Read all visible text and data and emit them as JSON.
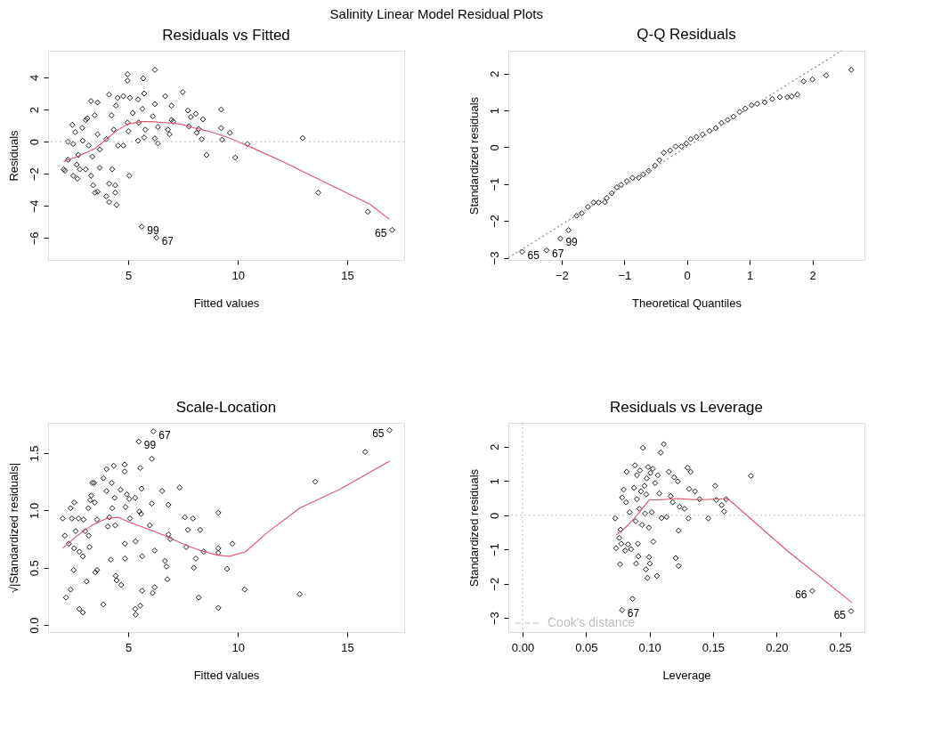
{
  "chart_data": [
    {
      "type": "scatter",
      "title": "Residuals vs Fitted",
      "xlabel": "Fitted values",
      "ylabel": "Residuals",
      "xlim": [
        1.33,
        17.6
      ],
      "ylim": [
        -7.36,
        5.66
      ],
      "xticks": [
        5,
        10,
        15
      ],
      "yticks": [
        -6,
        -4,
        -2,
        0,
        2,
        4
      ],
      "grid": false,
      "series": [
        {
          "marker": "diamond",
          "color": "#000000",
          "x": [
            2.04,
            2.1,
            2.24,
            2.24,
            2.44,
            2.48,
            2.48,
            2.57,
            2.64,
            2.67,
            2.71,
            2.78,
            2.89,
            2.91,
            3.05,
            3.12,
            3.05,
            3.19,
            3.29,
            3.29,
            3.35,
            3.39,
            3.46,
            3.48,
            3.59,
            3.59,
            3.59,
            3.69,
            3.69,
            3.99,
            3.99,
            4.12,
            4.12,
            4.12,
            4.23,
            4.26,
            4.33,
            4.4,
            4.4,
            4.46,
            4.43,
            4.51,
            4.53,
            4.77,
            4.77,
            4.96,
            4.96,
            4.96,
            5.0,
            5.04,
            5.07,
            5.2,
            5.44,
            5.44,
            5.47,
            5.61,
            5.64,
            5.68,
            5.72,
            5.72,
            5.77,
            6.12,
            6.21,
            6.21,
            6.21,
            6.28,
            6.35,
            6.35,
            6.68,
            6.81,
            6.88,
            6.97,
            6.97,
            7.05,
            7.48,
            7.72,
            7.77,
            7.85,
            8.08,
            8.12,
            8.21,
            8.35,
            8.41,
            8.57,
            9.24,
            9.24,
            9.28,
            9.64,
            9.88,
            10.44,
            12.96,
            13.67,
            15.94,
            17.05
          ],
          "values": [
            -1.72,
            -1.8,
            0,
            -1.13,
            1.05,
            -0.14,
            -2.12,
            0.6,
            -1.43,
            -2.3,
            -0.83,
            -1.72,
            0.85,
            0.06,
            1.35,
            1.45,
            -1.72,
            -0.24,
            -2.12,
            2.53,
            -0.93,
            -2.71,
            1.64,
            -3.17,
            2.44,
            0.46,
            -3.11,
            -0.48,
            -1.62,
            0.16,
            -3.4,
            2.93,
            -2.61,
            -3.76,
            1.64,
            -1.72,
            0.75,
            -2.71,
            -3.17,
            -3.94,
            2.24,
            2.73,
            -0.24,
            -0.24,
            2.83,
            4.2,
            3.8,
            1.19,
            0.65,
            -2.12,
            2.73,
            1.78,
            2.63,
            0.06,
            1.19,
            -5.29,
            2.04,
            3.94,
            3.0,
            0.26,
            0.75,
            1.58,
            4.47,
            2.34,
            0.2,
            -5.98,
            -0.1,
            0.91,
            2.83,
            0.75,
            0.46,
            2.24,
            1.35,
            1.25,
            3.09,
            1.94,
            0.95,
            1.54,
            1.74,
            0.55,
            0.79,
            0.16,
            1.39,
            -0.83,
            2.0,
            0.85,
            0.12,
            0.55,
            -0.99,
            -0.14,
            0.22,
            -3.17,
            -4.36,
            -5.49
          ]
        },
        {
          "type": "line",
          "color": "#df536b",
          "x": [
            2.04,
            2.66,
            3.46,
            4.0,
            4.53,
            5.0,
            5.6,
            6.07,
            6.67,
            7.34,
            8.01,
            8.68,
            9.35,
            10.02,
            10.69,
            12.03,
            13.37,
            14.71,
            16.04,
            16.93
          ],
          "values": [
            -1.23,
            -0.93,
            -0.44,
            0.16,
            0.75,
            1.11,
            1.25,
            1.25,
            1.19,
            1.11,
            0.85,
            0.65,
            0.36,
            0,
            -0.4,
            -1.23,
            -2.12,
            -3.01,
            -3.9,
            -4.83
          ]
        }
      ],
      "ref_lines": [
        {
          "axis": "y",
          "value": 0,
          "color": "#bebebe",
          "line_style": "dotted"
        }
      ],
      "annotations": [
        "Salinity Linear Model Residual Plots",
        {
          "text": "99",
          "x": 5.61,
          "y": -5.29
        },
        {
          "text": "67",
          "x": 6.28,
          "y": -5.98
        },
        {
          "text": "65",
          "x": 17.05,
          "y": -5.49
        }
      ]
    },
    {
      "type": "scatter",
      "title": "Q-Q Residuals",
      "xlabel": "Theoretical Quantiles",
      "ylabel": "Standardized residuals",
      "xlim": [
        -2.85,
        2.83
      ],
      "ylim": [
        -3.06,
        2.62
      ],
      "xticks": [
        -2,
        -1,
        0,
        1,
        2
      ],
      "yticks": [
        -3,
        -2,
        -1,
        0,
        1,
        2
      ],
      "grid": false,
      "series": [
        {
          "marker": "diamond",
          "color": "#000000",
          "x": [
            -2.63,
            -2.24,
            -2.02,
            -1.89,
            -1.76,
            -1.68,
            -1.58,
            -1.49,
            -1.41,
            -1.31,
            -1.28,
            -1.2,
            -1.12,
            -1.05,
            -0.96,
            -0.87,
            -0.77,
            -0.7,
            -0.61,
            -0.51,
            -0.44,
            -0.37,
            -0.27,
            -0.18,
            -0.09,
            -0.01,
            0.06,
            0.15,
            0.25,
            0.36,
            0.46,
            0.55,
            0.65,
            0.74,
            0.84,
            0.93,
            1.03,
            1.12,
            1.24,
            1.36,
            1.48,
            1.6,
            1.67,
            1.76,
            1.86,
            2.0,
            2.22,
            2.62
          ],
          "values": [
            -2.84,
            -2.8,
            -2.48,
            -2.25,
            -1.86,
            -1.79,
            -1.62,
            -1.5,
            -1.5,
            -1.49,
            -1.38,
            -1.25,
            -1.09,
            -1.02,
            -0.92,
            -0.83,
            -0.83,
            -0.74,
            -0.64,
            -0.5,
            -0.35,
            -0.15,
            -0.09,
            0.02,
            0.02,
            0.1,
            0.22,
            0.28,
            0.35,
            0.44,
            0.52,
            0.66,
            0.74,
            0.83,
            0.96,
            1.05,
            1.14,
            1.18,
            1.22,
            1.31,
            1.36,
            1.36,
            1.38,
            1.43,
            1.79,
            1.84,
            1.95,
            2.1
          ]
        },
        {
          "type": "line",
          "color": "#808080",
          "line_style": "dotted",
          "x": [
            -2.85,
            2.47
          ],
          "values": [
            -3.0,
            2.62
          ]
        }
      ],
      "annotations": [
        {
          "text": "65",
          "x": -2.63,
          "y": -2.84
        },
        {
          "text": "67",
          "x": -2.24,
          "y": -2.8
        },
        {
          "text": "99",
          "x": -2.02,
          "y": -2.48
        }
      ]
    },
    {
      "type": "scatter",
      "title": "Scale-Location",
      "xlabel": "Fitted values",
      "ylabel": "√|Standardized residuals|",
      "xlim": [
        1.33,
        17.6
      ],
      "ylim": [
        -0.061,
        1.764
      ],
      "xticks": [
        5,
        10,
        15
      ],
      "yticks": [
        {
          "value": 0,
          "label": "0.0"
        },
        0.5,
        {
          "value": 1,
          "label": "1.0"
        },
        1.5
      ],
      "grid": false,
      "series": [
        {
          "marker": "diamond",
          "color": "#000000",
          "x": [
            2.0,
            2.1,
            2.15,
            2.28,
            2.36,
            2.36,
            2.42,
            2.5,
            2.52,
            2.52,
            2.59,
            2.72,
            2.76,
            2.76,
            2.92,
            2.92,
            2.95,
            3.03,
            3.09,
            3.17,
            3.19,
            3.22,
            3.26,
            3.3,
            3.35,
            3.43,
            3.46,
            3.49,
            3.57,
            3.57,
            3.86,
            3.86,
            4.0,
            4.0,
            4.06,
            4.13,
            4.2,
            4.24,
            4.26,
            4.33,
            4.37,
            4.4,
            4.42,
            4.46,
            4.64,
            4.67,
            4.83,
            4.83,
            4.84,
            4.84,
            4.87,
            4.93,
            5.04,
            5.07,
            5.31,
            5.33,
            5.31,
            5.33,
            5.47,
            5.5,
            5.54,
            5.54,
            5.58,
            5.6,
            5.63,
            5.63,
            5.98,
            6.07,
            6.07,
            6.11,
            6.14,
            6.2,
            6.2,
            6.54,
            6.67,
            6.74,
            6.78,
            6.83,
            6.83,
            6.91,
            7.34,
            7.58,
            7.64,
            7.72,
            7.95,
            7.99,
            8.08,
            8.21,
            8.28,
            8.44,
            9.11,
            9.11,
            9.11,
            9.11,
            9.51,
            9.75,
            10.31,
            12.83,
            13.54,
            15.82,
            16.93
          ],
          "values": [
            0.93,
            0.78,
            0.24,
            0.71,
            0.31,
            1.02,
            0.93,
            0.48,
            1.07,
            0.67,
            0.82,
            0.93,
            0.64,
            0.14,
            0.11,
            0.6,
            0.92,
            0.82,
            0.38,
            1.02,
            0.78,
            0.68,
            1.09,
            1.13,
            1.24,
            1.24,
            1.07,
            0.46,
            0.92,
            0.48,
            0.18,
            1.28,
            1.36,
            1.17,
            0.86,
            0.94,
            0.57,
            1.24,
            1.02,
            1.39,
            1.11,
            0.87,
            0.43,
            0.39,
            1.18,
            0.35,
            1.4,
            1.34,
            0.71,
            0.58,
            1.03,
            1.14,
            1.1,
            0.93,
            1.11,
            0.73,
            0.14,
            0.09,
            1.6,
            0.99,
            1.37,
            0.17,
            0.97,
            1.19,
            0.6,
            0.3,
            0.87,
            1.45,
            1.06,
            0.28,
            1.69,
            0.33,
            0.65,
            1.17,
            0.56,
            0.51,
            0.4,
            1.05,
            0.79,
            0.75,
            1.2,
            0.94,
            0.68,
            0.83,
            0.93,
            0.5,
            0.58,
            0.24,
            0.83,
            0.64,
            0.98,
            0.67,
            0.63,
            0.15,
            0.49,
            0.71,
            0.31,
            0.27,
            1.25,
            1.51,
            1.7
          ]
        },
        {
          "type": "line",
          "color": "#df536b",
          "x": [
            2.0,
            2.66,
            3.33,
            4.0,
            4.53,
            5.0,
            6.0,
            6.67,
            7.48,
            8.28,
            9.08,
            9.62,
            10.35,
            11.36,
            12.83,
            14.71,
            16.93
          ],
          "values": [
            0.67,
            0.78,
            0.87,
            0.93,
            0.94,
            0.9,
            0.83,
            0.78,
            0.71,
            0.65,
            0.61,
            0.6,
            0.64,
            0.81,
            1.02,
            1.19,
            1.43
          ]
        }
      ],
      "annotations": [
        {
          "text": "67",
          "x": 6.14,
          "y": 1.69
        },
        {
          "text": "99",
          "x": 5.47,
          "y": 1.6
        },
        {
          "text": "65",
          "x": 16.93,
          "y": 1.7
        }
      ]
    },
    {
      "type": "scatter",
      "title": "Residuals vs Leverage",
      "xlabel": "Leverage",
      "ylabel": "Standardized residuals",
      "xlim": [
        -0.0112,
        0.2692
      ],
      "ylim": [
        -3.41,
        2.7
      ],
      "xticks": [
        {
          "value": 0,
          "label": "0.00"
        },
        0.05,
        {
          "value": 0.1,
          "label": "0.10"
        },
        0.15,
        {
          "value": 0.2,
          "label": "0.20"
        },
        0.25
      ],
      "yticks": [
        -3,
        -2,
        -1,
        0,
        1,
        2
      ],
      "grid": false,
      "legend": "bottom left",
      "series": [
        {
          "marker": "diamond",
          "color": "#000000",
          "x": [
            0.0737,
            0.0768,
            0.073,
            0.0761,
            0.0772,
            0.0777,
            0.0784,
            0.0784,
            0.0796,
            0.0808,
            0.0815,
            0.0819,
            0.0831,
            0.0843,
            0.0854,
            0.0866,
            0.0878,
            0.0885,
            0.089,
            0.0894,
            0.0901,
            0.0901,
            0.0908,
            0.0913,
            0.092,
            0.0925,
            0.0932,
            0.0941,
            0.0948,
            0.096,
            0.0964,
            0.0971,
            0.0974,
            0.0978,
            0.0983,
            0.0988,
            0.0995,
            0.0997,
            0.1002,
            0.1007,
            0.1018,
            0.1025,
            0.103,
            0.1044,
            0.1058,
            0.1065,
            0.1077,
            0.1088,
            0.1095,
            0.1112,
            0.1135,
            0.1152,
            0.1166,
            0.1182,
            0.1194,
            0.1206,
            0.1222,
            0.1229,
            0.1229,
            0.1236,
            0.1276,
            0.1299,
            0.1306,
            0.1311,
            0.1323,
            0.1358,
            0.1393,
            0.1463,
            0.1517,
            0.1526,
            0.1568,
            0.1587,
            0.1603,
            0.1798,
            0.2282,
            0.2587
          ],
          "values": [
            -0.96,
            -1.43,
            -0.09,
            -0.66,
            -0.42,
            -0.83,
            -2.77,
            0.52,
            0.75,
            -1.03,
            0.38,
            1.27,
            -0.85,
            0.09,
            -0.99,
            -2.44,
            0.8,
            1.46,
            -0.17,
            -1.41,
            1.17,
            0.47,
            -0.83,
            -1.2,
            0.19,
            1.31,
            0.7,
            -0.28,
            1.97,
            0.86,
            0.05,
            -1.58,
            0.61,
            1.08,
            -1.83,
            1.41,
            -0.36,
            -1.22,
            -1.41,
            1.24,
            0.09,
            1.36,
            -0.77,
            0.94,
            -1.77,
            1.17,
            0.64,
            1.83,
            -0.08,
            2.08,
            -0.05,
            1.27,
            0.56,
            0.38,
            1.11,
            -1.25,
            0.99,
            -0.45,
            -1.48,
            0.25,
            0.19,
            1.39,
            -0.09,
            0.77,
            1.27,
            0.7,
            0.47,
            -0.09,
            0.86,
            0.45,
            0.3,
            0.11,
            0.47,
            1.15,
            -2.21,
            -2.8
          ]
        },
        {
          "type": "line",
          "color": "#df536b",
          "x": [
            0.0737,
            0.0819,
            0.0913,
            0.0997,
            0.1077,
            0.1217,
            0.1381,
            0.1615,
            0.2083,
            0.2594
          ],
          "values": [
            -0.58,
            -0.33,
            0.05,
            0.45,
            0.45,
            0.49,
            0.45,
            0.49,
            -1.03,
            -2.55
          ]
        },
        {
          "type": "line",
          "name": "Cook's distance",
          "color": "#bebebe",
          "line_style": "dashed"
        }
      ],
      "ref_lines": [
        {
          "axis": "y",
          "value": 0,
          "color": "#bebebe",
          "line_style": "dotted"
        },
        {
          "axis": "x",
          "value": 0,
          "color": "#bebebe",
          "line_style": "dotted"
        }
      ],
      "annotations": [
        {
          "text": "67",
          "x": 0.0784,
          "y": -2.77
        },
        {
          "text": "66",
          "x": 0.2282,
          "y": -2.21
        },
        {
          "text": "65",
          "x": 0.2587,
          "y": -2.8
        }
      ]
    }
  ]
}
